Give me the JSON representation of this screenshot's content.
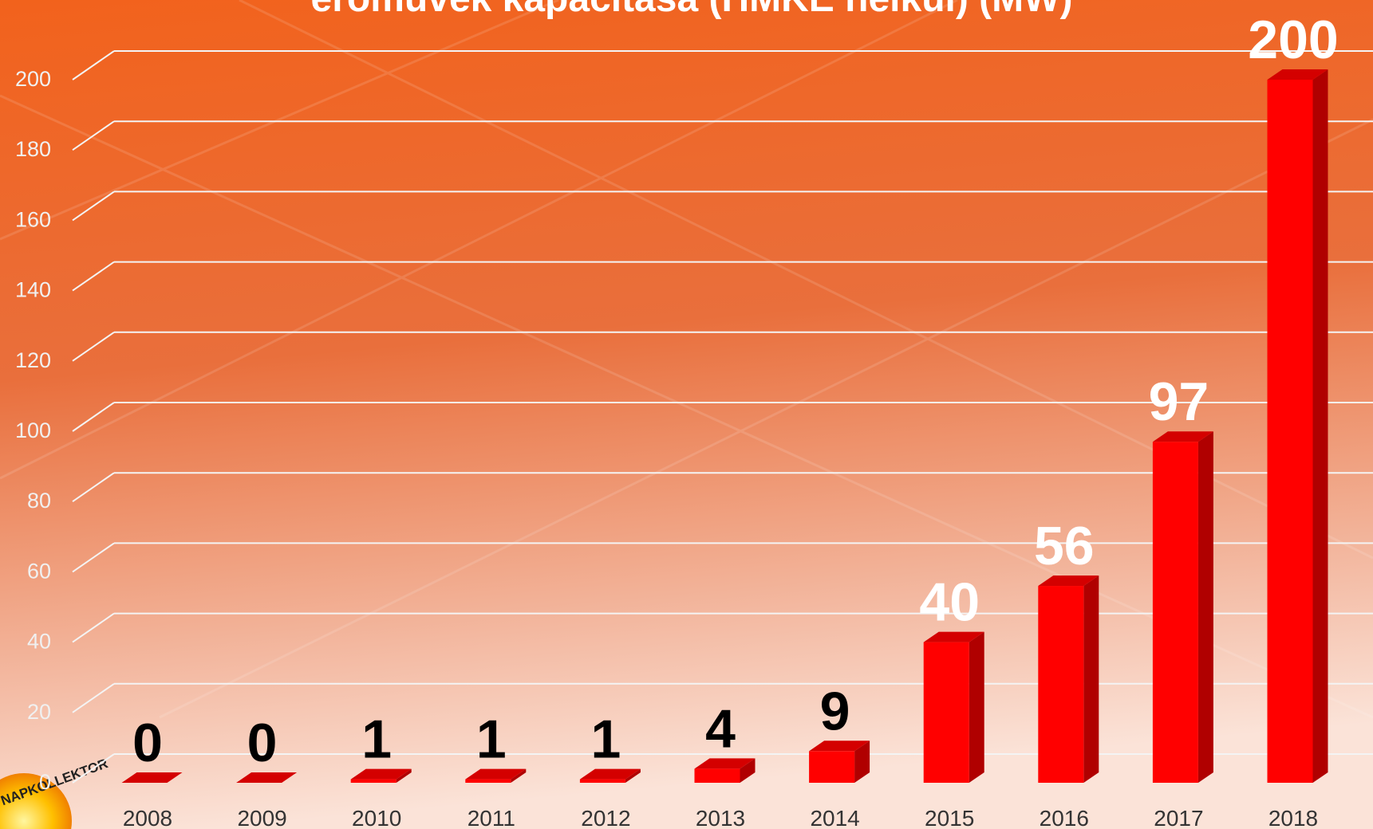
{
  "chart_data": {
    "type": "bar3d",
    "title": "erőművek kapacitása (HMKE nélkül) (MW)",
    "categories": [
      "2008",
      "2009",
      "2010",
      "2011",
      "2012",
      "2013",
      "2014",
      "2015",
      "2016",
      "2017",
      "2018"
    ],
    "values": [
      0,
      0,
      1,
      1,
      1,
      4,
      9,
      40,
      56,
      97,
      200
    ],
    "color": "#ff0000",
    "ylim": [
      0,
      200
    ],
    "yticks": [
      0,
      20,
      40,
      60,
      80,
      100,
      120,
      140,
      160,
      180,
      200
    ],
    "grid": true,
    "logo": "NAPKOLLEKTOR"
  }
}
